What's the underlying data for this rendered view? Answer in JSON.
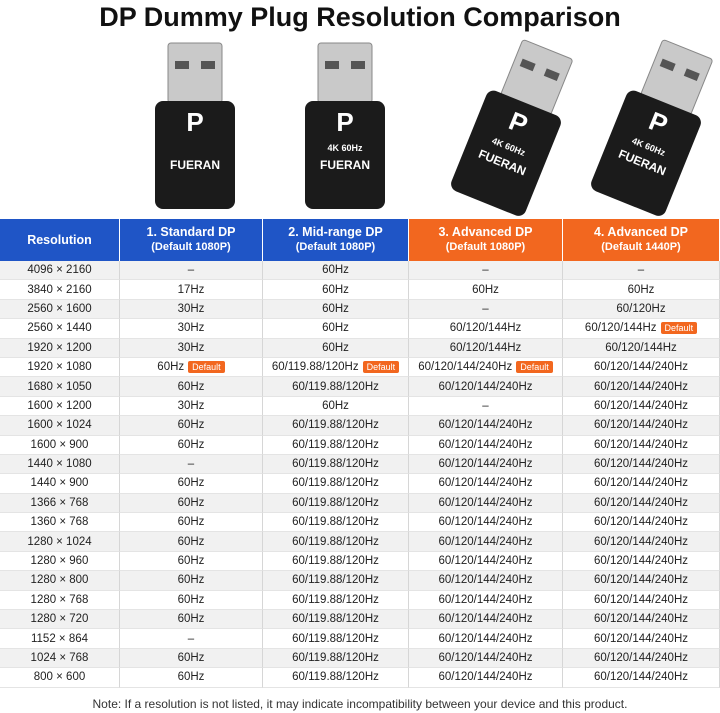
{
  "title": "DP Dummy Plug Resolution Comparison",
  "plugs": [
    {
      "brand": "FUERAN"
    },
    {
      "label": "4K 60Hz",
      "brand": "FUERAN"
    },
    {
      "label": "4K 60Hz",
      "brand": "FUERAN"
    },
    {
      "label": "4K 60Hz",
      "brand": "FUERAN"
    }
  ],
  "table": {
    "header": [
      {
        "title": "Resolution"
      },
      {
        "title": "1. Standard DP",
        "subtitle": "(Default 1080P)"
      },
      {
        "title": "2. Mid-range DP",
        "subtitle": "(Default 1080P)"
      },
      {
        "title": "3. Advanced DP",
        "subtitle": "(Default 1080P)"
      },
      {
        "title": "4. Advanced DP",
        "subtitle": "(Default 1440P)"
      }
    ],
    "rows": [
      [
        "4096 × 2160",
        "–",
        "60Hz",
        "–",
        "–"
      ],
      [
        "3840 × 2160",
        "17Hz",
        "60Hz",
        "60Hz",
        "60Hz"
      ],
      [
        "2560 × 1600",
        "30Hz",
        "60Hz",
        "–",
        "60/120Hz"
      ],
      [
        "2560 × 1440",
        "30Hz",
        "60Hz",
        "60/120/144Hz",
        {
          "text": "60/120/144Hz",
          "badge": "Default"
        }
      ],
      [
        "1920 × 1200",
        "30Hz",
        "60Hz",
        "60/120/144Hz",
        "60/120/144Hz"
      ],
      [
        "1920 × 1080",
        {
          "text": "60Hz",
          "badge": "Default"
        },
        {
          "text": "60/119.88/120Hz",
          "badge": "Default"
        },
        {
          "text": "60/120/144/240Hz",
          "badge": "Default"
        },
        "60/120/144/240Hz"
      ],
      [
        "1680 × 1050",
        "60Hz",
        "60/119.88/120Hz",
        "60/120/144/240Hz",
        "60/120/144/240Hz"
      ],
      [
        "1600 × 1200",
        "30Hz",
        "60Hz",
        "–",
        "60/120/144/240Hz"
      ],
      [
        "1600 × 1024",
        "60Hz",
        "60/119.88/120Hz",
        "60/120/144/240Hz",
        "60/120/144/240Hz"
      ],
      [
        "1600 × 900",
        "60Hz",
        "60/119.88/120Hz",
        "60/120/144/240Hz",
        "60/120/144/240Hz"
      ],
      [
        "1440 × 1080",
        "–",
        "60/119.88/120Hz",
        "60/120/144/240Hz",
        "60/120/144/240Hz"
      ],
      [
        "1440 × 900",
        "60Hz",
        "60/119.88/120Hz",
        "60/120/144/240Hz",
        "60/120/144/240Hz"
      ],
      [
        "1366 × 768",
        "60Hz",
        "60/119.88/120Hz",
        "60/120/144/240Hz",
        "60/120/144/240Hz"
      ],
      [
        "1360 × 768",
        "60Hz",
        "60/119.88/120Hz",
        "60/120/144/240Hz",
        "60/120/144/240Hz"
      ],
      [
        "1280 × 1024",
        "60Hz",
        "60/119.88/120Hz",
        "60/120/144/240Hz",
        "60/120/144/240Hz"
      ],
      [
        "1280 × 960",
        "60Hz",
        "60/119.88/120Hz",
        "60/120/144/240Hz",
        "60/120/144/240Hz"
      ],
      [
        "1280 × 800",
        "60Hz",
        "60/119.88/120Hz",
        "60/120/144/240Hz",
        "60/120/144/240Hz"
      ],
      [
        "1280 × 768",
        "60Hz",
        "60/119.88/120Hz",
        "60/120/144/240Hz",
        "60/120/144/240Hz"
      ],
      [
        "1280 × 720",
        "60Hz",
        "60/119.88/120Hz",
        "60/120/144/240Hz",
        "60/120/144/240Hz"
      ],
      [
        "1152 × 864",
        "–",
        "60/119.88/120Hz",
        "60/120/144/240Hz",
        "60/120/144/240Hz"
      ],
      [
        "1024 × 768",
        "60Hz",
        "60/119.88/120Hz",
        "60/120/144/240Hz",
        "60/120/144/240Hz"
      ],
      [
        "800 × 600",
        "60Hz",
        "60/119.88/120Hz",
        "60/120/144/240Hz",
        "60/120/144/240Hz"
      ]
    ]
  },
  "note": "Note: If a resolution is not listed, it may indicate incompatibility between your device and this product."
}
